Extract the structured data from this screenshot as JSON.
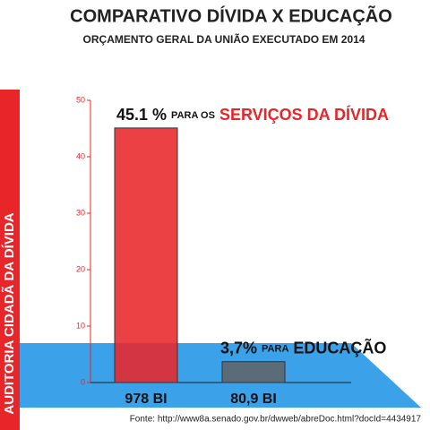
{
  "chart_data": {
    "type": "bar",
    "title": "COMPARATIVO DÍVIDA X EDUCAÇÃO",
    "subtitle": "ORÇAMENTO GERAL DA UNIÃO EXECUTADO EM 2014",
    "side_label": "AUDITORIA CIDADÃ DA DÍVIDA",
    "source": "Fonte: http://www8a.senado.gov.br/dwweb/abreDoc.html?docId=4434917",
    "categories": [
      "978 BI",
      "80,9 BI"
    ],
    "values": [
      45.1,
      3.7
    ],
    "value_labels": [
      "45.1 %",
      "3,7%"
    ],
    "annotations": [
      [
        "PARA OS",
        "SERVIÇOS DA DÍVIDA"
      ],
      [
        "PARA",
        "EDUCAÇÃO"
      ]
    ],
    "colors": [
      "#e8262a",
      "#5b6b78"
    ],
    "ylim": [
      0,
      50
    ],
    "yticks": [
      0,
      10,
      20,
      30,
      40,
      50
    ]
  }
}
